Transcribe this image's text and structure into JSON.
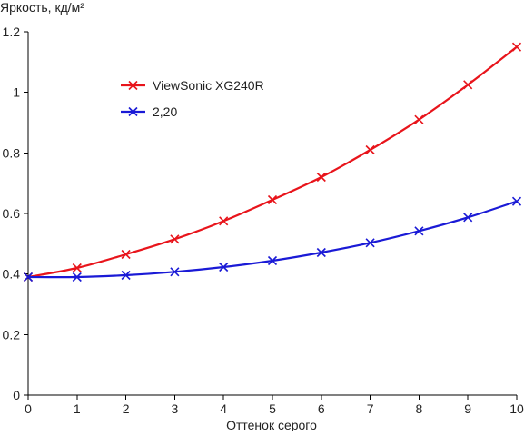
{
  "chart_data": {
    "type": "line",
    "ylabel": "Яркость, кд/м²",
    "xlabel": "Оттенок серого",
    "xlim": [
      0,
      10
    ],
    "ylim": [
      0,
      1.2
    ],
    "x_ticks": [
      "0",
      "1",
      "2",
      "3",
      "4",
      "5",
      "6",
      "7",
      "8",
      "9",
      "10"
    ],
    "y_ticks": [
      "0",
      "0.2",
      "0.4",
      "0.6",
      "0.8",
      "1",
      "1.2"
    ],
    "grid": false,
    "legend_position": "top-left",
    "x": [
      0,
      1,
      2,
      3,
      4,
      5,
      6,
      7,
      8,
      9,
      10
    ],
    "series": [
      {
        "name": "ViewSonic XG240R",
        "color": "#e8141b",
        "marker": "x",
        "values": [
          0.39,
          0.42,
          0.465,
          0.515,
          0.575,
          0.645,
          0.72,
          0.81,
          0.91,
          1.025,
          1.15
        ]
      },
      {
        "name": "2,20",
        "color": "#1a1ad6",
        "marker": "x",
        "values": [
          0.39,
          0.39,
          0.396,
          0.407,
          0.423,
          0.444,
          0.471,
          0.503,
          0.542,
          0.587,
          0.64
        ]
      }
    ]
  }
}
